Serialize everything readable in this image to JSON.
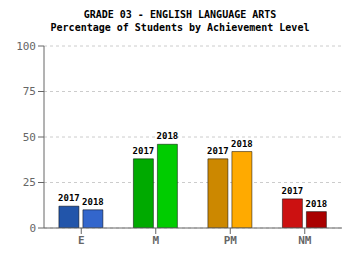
{
  "chart_data": {
    "type": "bar",
    "title": "GRADE 03 - ENGLISH LANGUAGE ARTS",
    "subtitle": "Percentage of Students by Achievement Level",
    "categories": [
      "E",
      "M",
      "PM",
      "NM"
    ],
    "series": [
      {
        "name": "2017",
        "colors": [
          "#2255aa",
          "#00aa00",
          "#cc8800",
          "#cc1111"
        ],
        "values": [
          12,
          38,
          38,
          16
        ]
      },
      {
        "name": "2018",
        "colors": [
          "#3366cc",
          "#00cc00",
          "#ffaa00",
          "#aa0000"
        ],
        "values": [
          10,
          46,
          42,
          9
        ]
      }
    ],
    "ylim": [
      0,
      100
    ],
    "yticks": [
      0,
      25,
      50,
      75,
      100
    ],
    "grid": true
  }
}
